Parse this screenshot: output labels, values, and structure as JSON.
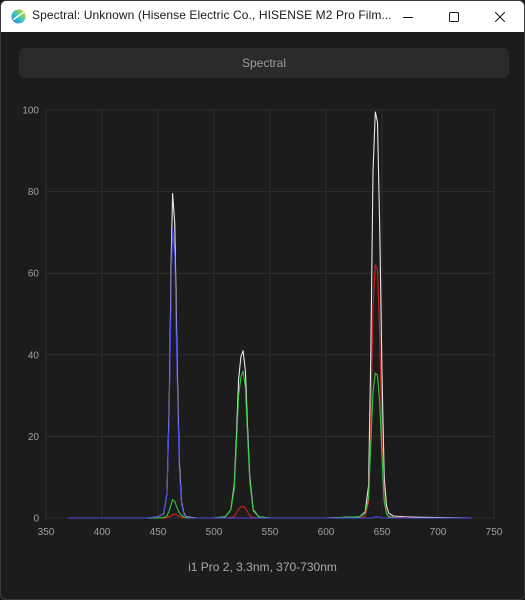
{
  "window": {
    "title": "Spectral: Unknown (Hisense Electric Co., HISENSE M2 Pro Film...",
    "minimize_icon": "minimize-icon",
    "maximize_icon": "maximize-icon",
    "close_icon": "close-icon"
  },
  "tab": {
    "label": "Spectral"
  },
  "caption": "i1 Pro 2, 3.3nm, 370-730nm",
  "colors": {
    "background": "#1b1b1b",
    "grid": "#2e2e2e",
    "white": "#e8e8e8",
    "red": "#d42020",
    "green": "#2fc83a",
    "blue": "#4a4ae6"
  },
  "chart_data": {
    "type": "line",
    "xlim": [
      350,
      750
    ],
    "ylim": [
      0,
      100
    ],
    "xticks": [
      350,
      400,
      450,
      500,
      550,
      600,
      650,
      700,
      750
    ],
    "yticks": [
      0,
      20,
      40,
      60,
      80,
      100
    ],
    "grid": true,
    "x": [
      370,
      440,
      450,
      455,
      458,
      460,
      462,
      463,
      465,
      467,
      469,
      471,
      473,
      475,
      478,
      480,
      485,
      500,
      510,
      515,
      518,
      520,
      522,
      524,
      526,
      528,
      530,
      532,
      535,
      540,
      550,
      600,
      630,
      635,
      638,
      640,
      642,
      644,
      646,
      648,
      650,
      652,
      654,
      656,
      660,
      670,
      680,
      700,
      730
    ],
    "series": [
      {
        "color": "white",
        "values": [
          0,
          0,
          0.3,
          1,
          6,
          28,
          66,
          79.5,
          72,
          40,
          14,
          4,
          1.2,
          0.4,
          0.2,
          0.1,
          0,
          0,
          0.3,
          2,
          8,
          20,
          34,
          39.5,
          41,
          36,
          22,
          10,
          2,
          0.3,
          0,
          0,
          0.3,
          1.5,
          8,
          40,
          85,
          99.5,
          97,
          70,
          35,
          10,
          3,
          1.2,
          0.5,
          0.3,
          0.2,
          0.1,
          0
        ]
      },
      {
        "color": "red",
        "values": [
          0,
          0,
          0,
          0,
          0.1,
          0.3,
          0.6,
          0.8,
          0.9,
          0.7,
          0.4,
          0.2,
          0.1,
          0,
          0,
          0,
          0,
          0,
          0,
          0.1,
          0.4,
          1.2,
          2.2,
          2.7,
          2.8,
          2.5,
          1.5,
          0.6,
          0.1,
          0,
          0,
          0,
          0,
          0.5,
          4,
          22,
          52,
          62,
          61,
          44,
          20,
          5,
          1.3,
          0.4,
          0.2,
          0.1,
          0,
          0,
          0
        ]
      },
      {
        "color": "green",
        "values": [
          0,
          0,
          0,
          0.1,
          0.5,
          1.8,
          3.5,
          4.5,
          4,
          2.5,
          1.3,
          0.7,
          0.3,
          0.1,
          0,
          0,
          0,
          0,
          0.3,
          2,
          7,
          18,
          30,
          34.5,
          36,
          32,
          20,
          9,
          1.8,
          0.3,
          0,
          0,
          0.3,
          1.2,
          5,
          18,
          31,
          35.5,
          35,
          28,
          15,
          4,
          1,
          0.3,
          0.1,
          0,
          0,
          0,
          0
        ]
      },
      {
        "color": "blue",
        "values": [
          0,
          0,
          0.3,
          1,
          6,
          26,
          60,
          71,
          64,
          36,
          12,
          3.5,
          1,
          0.3,
          0.1,
          0,
          0,
          0,
          0,
          0,
          0,
          0,
          0,
          0,
          0,
          0,
          0,
          0,
          0,
          0,
          0,
          0,
          0,
          0,
          0,
          0,
          0,
          0.3,
          0.3,
          0.2,
          0,
          0,
          0,
          0,
          0,
          0,
          0,
          0,
          0
        ]
      }
    ]
  }
}
